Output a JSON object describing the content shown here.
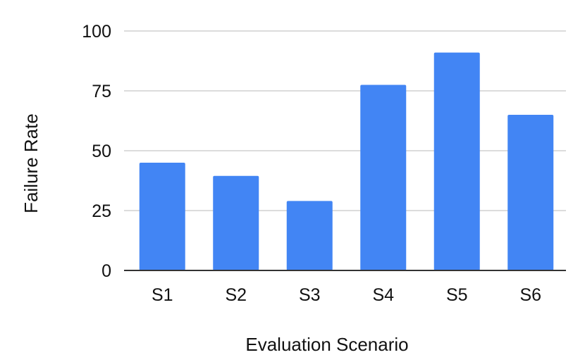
{
  "chart_data": {
    "type": "bar",
    "categories": [
      "S1",
      "S2",
      "S3",
      "S4",
      "S5",
      "S6"
    ],
    "series": [
      {
        "values": [
          45,
          39.5,
          29,
          77.5,
          91,
          65
        ]
      }
    ],
    "xlabel": "Evaluation Scenario",
    "ylabel": "Failure Rate",
    "ylim": [
      0,
      100
    ],
    "yticks": [
      0,
      25,
      50,
      75,
      100
    ],
    "grid": true,
    "bar_color": "#4285F4"
  }
}
